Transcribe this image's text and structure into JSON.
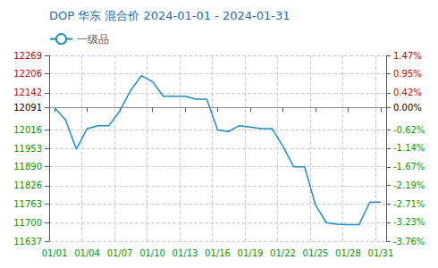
{
  "chart_data": {
    "type": "line",
    "title": "DOP 华东 混合价 2024-01-01 - 2024-01-31",
    "categories": [
      "01/01",
      null,
      null,
      "01/04",
      null,
      null,
      "01/07",
      null,
      null,
      "01/10",
      null,
      null,
      "01/13",
      null,
      null,
      "01/16",
      null,
      null,
      "01/19",
      null,
      null,
      "01/22",
      null,
      null,
      "01/25",
      null,
      null,
      "01/28",
      null,
      null,
      "01/31"
    ],
    "series": [
      {
        "name": "一级品",
        "color": "#1a8fc0",
        "values": [
          12091,
          12050,
          11950,
          12020,
          12030,
          12030,
          12080,
          12150,
          12200,
          12180,
          12130,
          12130,
          12130,
          12120,
          12120,
          12015,
          12010,
          12030,
          12025,
          12020,
          12020,
          11960,
          11890,
          11890,
          11760,
          11700,
          11695,
          11693,
          11693,
          11770,
          11770
        ]
      }
    ],
    "baseline": 12091,
    "ylim": [
      11637,
      12269
    ],
    "yticks": [
      11637,
      11700,
      11763,
      11826,
      11890,
      11953,
      12016,
      12091,
      12142,
      12206,
      12269
    ],
    "y2lim": [
      -3.76,
      1.47
    ],
    "y2ticks": [
      {
        "value": -3.76,
        "label": "-3.76%"
      },
      {
        "value": -3.23,
        "label": "-3.23%"
      },
      {
        "value": -2.71,
        "label": "-2.71%"
      },
      {
        "value": -2.19,
        "label": "-2.19%"
      },
      {
        "value": -1.67,
        "label": "-1.67%"
      },
      {
        "value": -1.14,
        "label": "-1.14%"
      },
      {
        "value": -0.62,
        "label": "-0.62%"
      },
      {
        "value": 0.0,
        "label": "0.00%"
      },
      {
        "value": 0.42,
        "label": "0.42%"
      },
      {
        "value": 0.95,
        "label": "0.95%"
      },
      {
        "value": 1.47,
        "label": "1.47%"
      }
    ],
    "grid": true,
    "legend": "upper left"
  }
}
